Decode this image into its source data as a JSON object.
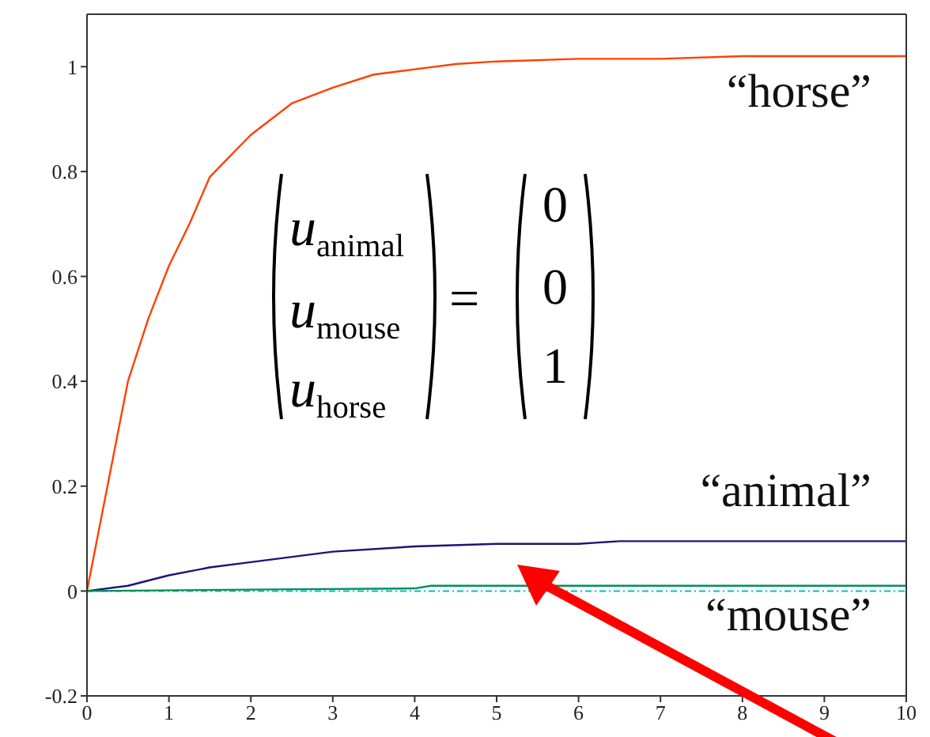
{
  "chart_data": {
    "type": "line",
    "xlim": [
      0,
      10
    ],
    "xticks": [
      0,
      1,
      2,
      3,
      4,
      5,
      6,
      7,
      8,
      9,
      10
    ],
    "ylim": [
      -0.2,
      1.1
    ],
    "yticks": [
      -0.2,
      0,
      0.2,
      0.4,
      0.6,
      0.8,
      1
    ],
    "grid": false,
    "legend": false,
    "marker": "none",
    "line_style": "solid",
    "series": [
      {
        "name": "“horse”",
        "color": "#ff4000",
        "x": [
          0,
          0.25,
          0.5,
          0.75,
          1,
          1.25,
          1.5,
          2,
          2.5,
          3,
          3.5,
          4,
          4.5,
          5,
          6,
          7,
          8,
          9,
          10
        ],
        "values": [
          0,
          0.2,
          0.4,
          0.52,
          0.62,
          0.7,
          0.79,
          0.87,
          0.93,
          0.96,
          0.985,
          0.995,
          1.005,
          1.01,
          1.015,
          1.015,
          1.02,
          1.02,
          1.02
        ]
      },
      {
        "name": "“animal”",
        "color": "#1c1478",
        "x": [
          0,
          0.5,
          1,
          1.5,
          2,
          3,
          4,
          5,
          6,
          6.5,
          8,
          10
        ],
        "values": [
          0,
          0.01,
          0.03,
          0.045,
          0.055,
          0.075,
          0.085,
          0.09,
          0.09,
          0.095,
          0.095,
          0.095
        ]
      },
      {
        "name": "“mouse”",
        "color": "#00905a",
        "x": [
          0,
          2.25,
          4,
          4.2,
          6,
          8,
          10
        ],
        "values": [
          0,
          0.003,
          0.005,
          0.01,
          0.01,
          0.01,
          0.01
        ]
      }
    ],
    "ref_lines": [
      {
        "axis": "y",
        "value": 0,
        "color": "#00c0c0",
        "line_style": "dotted"
      }
    ],
    "annotations": [
      "u$_{animal}$",
      "u$_{mouse}$",
      "u$_{horse}$",
      "=",
      "0",
      "0",
      "1"
    ]
  }
}
